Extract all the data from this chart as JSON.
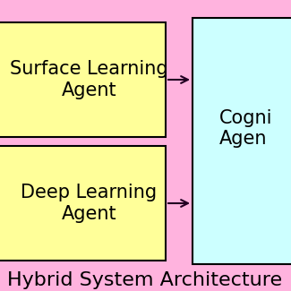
{
  "bg_color": "#ffb3de",
  "title": "Hybrid System Architecture",
  "title_fontsize": 16,
  "title_color": "#000000",
  "box1_text": "Surface Learning\nAgent",
  "box2_text": "Deep Learning\nAgent",
  "box3_text": "Cogni\nAgen",
  "box_yellow": "#ffff99",
  "box_cyan": "#ccffff",
  "box_edge": "#000000",
  "text_fontsize": 15,
  "title_weight": "normal",
  "text_weight": "normal"
}
